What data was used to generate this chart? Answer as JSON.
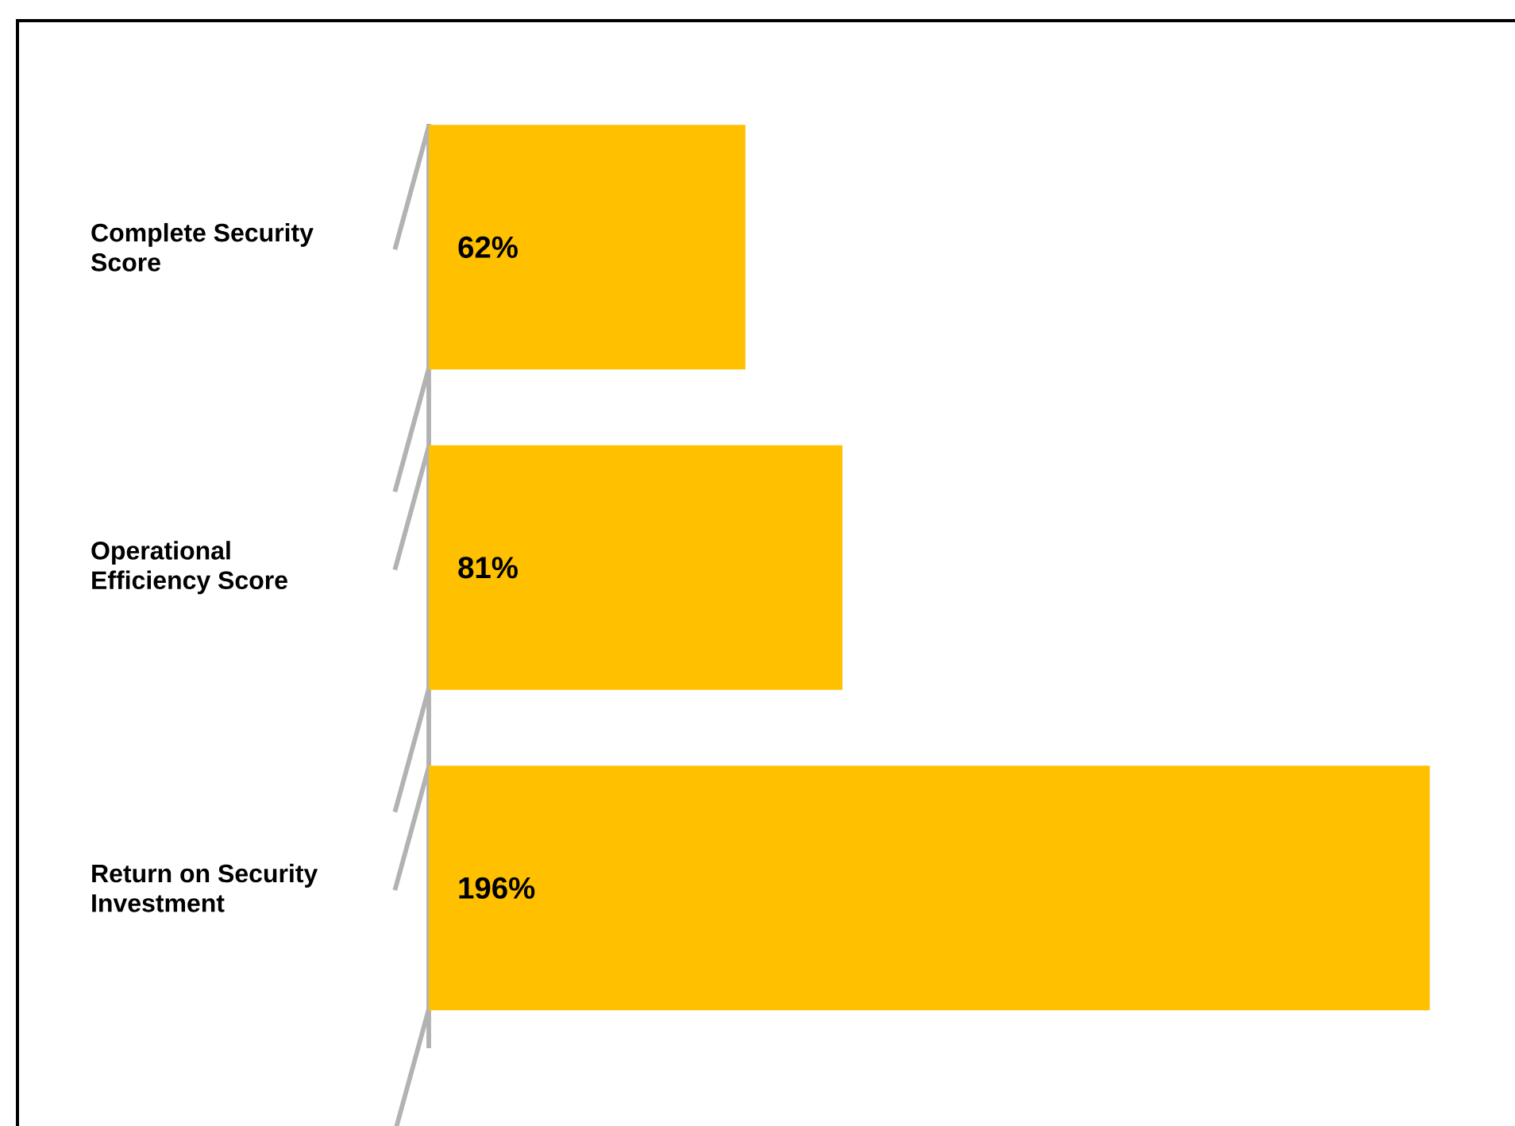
{
  "chart_data": {
    "type": "bar",
    "orientation": "horizontal",
    "categories": [
      "Complete Security Score",
      "Operational Efficiency Score",
      "Return on Security Investment"
    ],
    "values": [
      62,
      81,
      196
    ],
    "value_labels": [
      "62%",
      "81%",
      "196%"
    ],
    "color": "#ffc000"
  }
}
